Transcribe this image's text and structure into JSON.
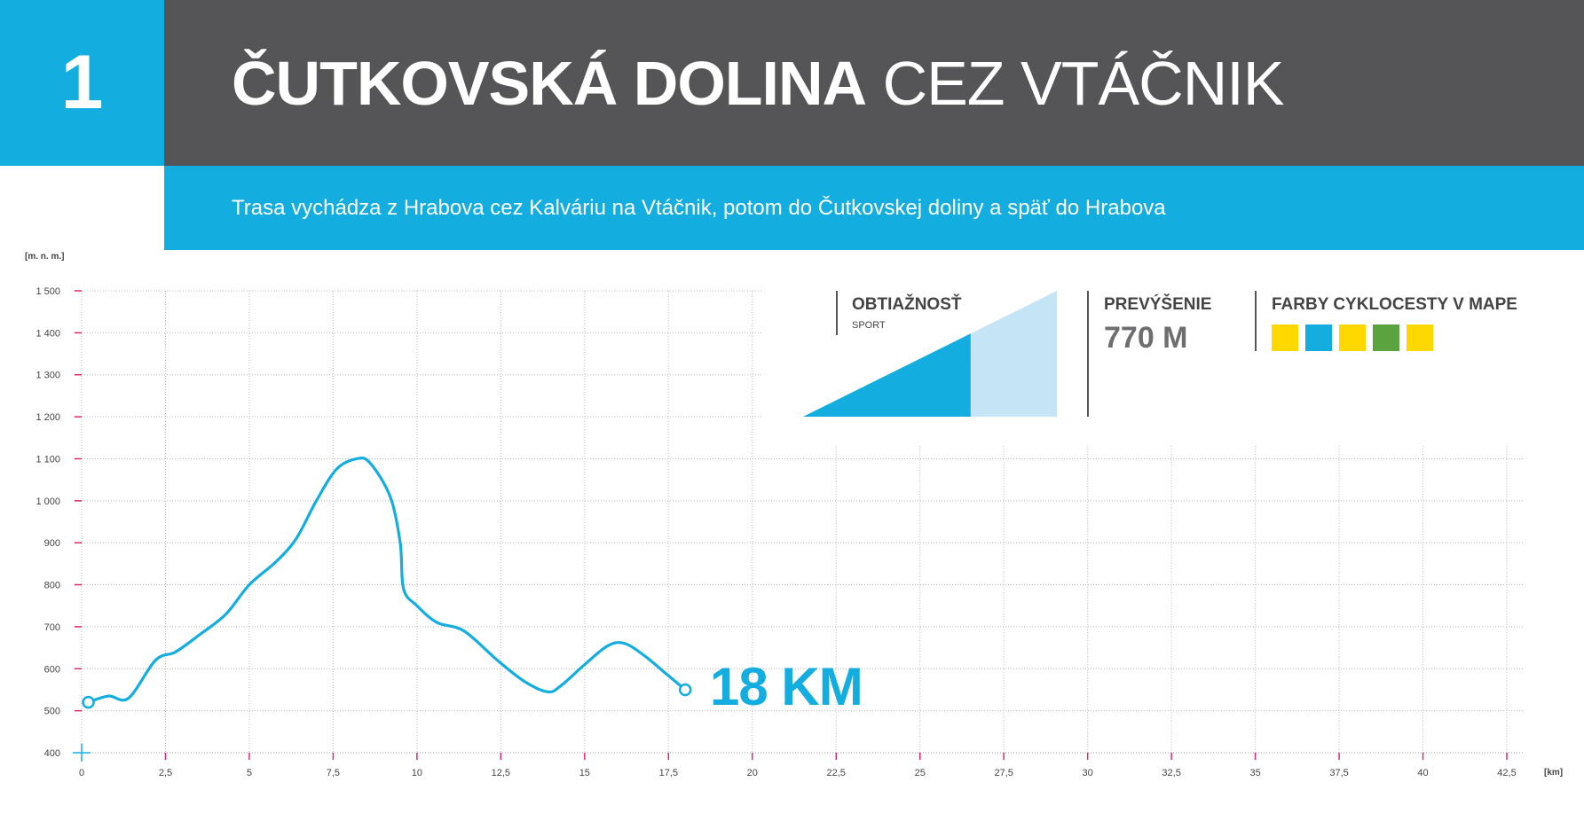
{
  "route": {
    "number": "1",
    "title_bold": "ČUTKOVSKÁ DOLINA",
    "title_light": "CEZ VTÁČNIK",
    "description": "Trasa vychádza z Hrabova cez Kalváriu na Vtáčnik, potom do Čutkovskej doliny a späť do Hrabova",
    "distance_label": "18 KM"
  },
  "difficulty": {
    "heading": "OBTIAŽNOSŤ",
    "level": "SPORT",
    "fill_fraction": 0.66
  },
  "elevation_gain": {
    "heading": "PREVÝŠENIE",
    "value": "770 M"
  },
  "map_colors": {
    "heading": "FARBY CYKLOCESTY V MAPE",
    "swatches": [
      "#ffd800",
      "#13ade0",
      "#ffd800",
      "#5aa33e",
      "#ffd800"
    ]
  },
  "colors": {
    "accent": "#13ade0",
    "dark": "#555557",
    "light_accent": "#c5e4f5",
    "tick_red": "#e2266e"
  },
  "chart_data": {
    "type": "line",
    "ylabel": "[m. n. m.]",
    "xlabel": "[km]",
    "ylim": [
      400,
      1500
    ],
    "xlim": [
      0,
      42.5
    ],
    "y_ticks": [
      "400",
      "500",
      "600",
      "700",
      "800",
      "900",
      "1 000",
      "1 100",
      "1 200",
      "1 300",
      "1 400",
      "1 500"
    ],
    "y_tick_values": [
      400,
      500,
      600,
      700,
      800,
      900,
      1000,
      1100,
      1200,
      1300,
      1400,
      1500
    ],
    "x_ticks": [
      "0",
      "2,5",
      "5",
      "7,5",
      "10",
      "12,5",
      "15",
      "17,5",
      "20",
      "22,5",
      "25",
      "27,5",
      "30",
      "32,5",
      "35",
      "37,5",
      "40",
      "42,5"
    ],
    "x_tick_values": [
      0,
      2.5,
      5,
      7.5,
      10,
      12.5,
      15,
      17.5,
      20,
      22.5,
      25,
      27.5,
      30,
      32.5,
      35,
      37.5,
      40,
      42.5
    ],
    "grid": true,
    "series": [
      {
        "x": [
          0.2,
          0.8,
          1.4,
          2.2,
          2.8,
          3.5,
          4.3,
          5.0,
          5.8,
          6.4,
          7.0,
          7.6,
          8.2,
          8.6,
          9.2,
          9.5,
          9.6,
          10.0,
          10.6,
          11.4,
          12.4,
          13.2,
          13.9,
          14.3,
          15.0,
          15.7,
          16.2,
          16.8,
          17.4,
          18.0
        ],
        "y": [
          520,
          535,
          530,
          620,
          640,
          680,
          730,
          800,
          855,
          910,
          1000,
          1075,
          1100,
          1090,
          1010,
          900,
          790,
          750,
          710,
          690,
          620,
          570,
          545,
          560,
          610,
          655,
          660,
          630,
          590,
          550
        ]
      }
    ]
  }
}
